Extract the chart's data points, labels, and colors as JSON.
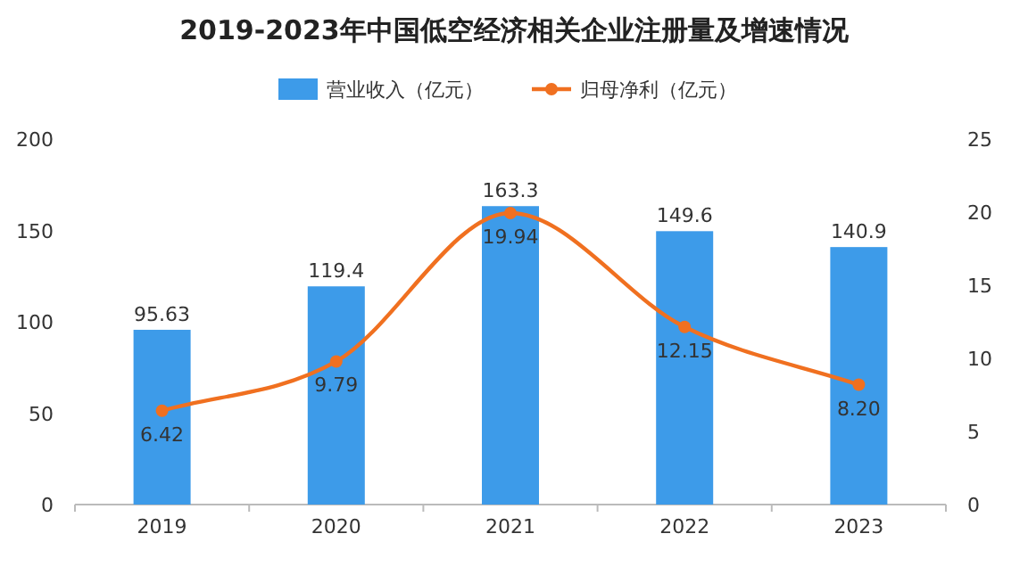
{
  "chart_data": {
    "type": "bar",
    "title": "2019-2023年中国低空经济相关企业注册量及增速情况",
    "categories": [
      "2019",
      "2020",
      "2021",
      "2022",
      "2023"
    ],
    "series": [
      {
        "name": "营业收入（亿元）",
        "color": "#3d9be9",
        "values": [
          95.63,
          119.4,
          163.3,
          149.6,
          140.9
        ],
        "value_labels": [
          "95.63",
          "119.4",
          "163.3",
          "149.6",
          "140.9"
        ]
      },
      {
        "name": "归母净利（亿元）",
        "type": "line",
        "axis": "y2",
        "color": "#f07020",
        "marker": "circle",
        "values": [
          6.42,
          9.79,
          19.94,
          12.15,
          8.2
        ],
        "value_labels": [
          "6.42",
          "9.79",
          "19.94",
          "12.15",
          "8.20"
        ]
      }
    ],
    "ylim": [
      0,
      200
    ],
    "yticks": [
      0,
      50,
      100,
      150,
      200
    ],
    "y2lim": [
      0,
      25
    ],
    "y2ticks": [
      0,
      5,
      10,
      15,
      20,
      25
    ],
    "grid": false,
    "legend": "top"
  }
}
